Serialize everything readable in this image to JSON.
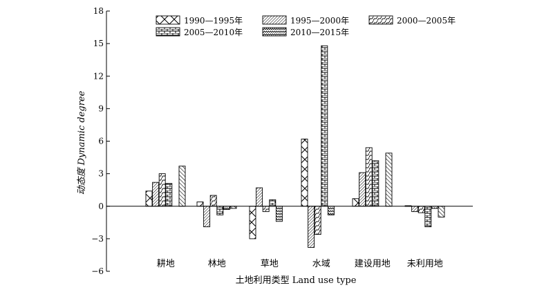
{
  "chart_data": {
    "type": "bar",
    "xlabel": "土地利用类型 Land use type",
    "ylabel": "动态度 Dynamic degree",
    "ylim": [
      -6,
      18
    ],
    "yticks": [
      -6,
      -3,
      0,
      3,
      6,
      9,
      12,
      15,
      18
    ],
    "ytick_labels": [
      "−6",
      "−3",
      "0",
      "3",
      "6",
      "9",
      "12",
      "15",
      "18"
    ],
    "grid": false,
    "legend_position": "top",
    "categories": [
      "耕地",
      "林地",
      "草地",
      "水域",
      "建设用地",
      "未利用地"
    ],
    "series": [
      {
        "name": "1990—1995年",
        "pattern": "cross",
        "values": [
          1.4,
          0.4,
          -3.0,
          6.2,
          0.7,
          0.05
        ]
      },
      {
        "name": "1995—2000年",
        "pattern": "diag-dense",
        "values": [
          2.2,
          -1.9,
          1.7,
          -3.8,
          3.1,
          -0.5
        ]
      },
      {
        "name": "2000—2005年",
        "pattern": "wave",
        "values": [
          3.0,
          1.0,
          -0.5,
          -2.6,
          5.4,
          -0.6
        ]
      },
      {
        "name": "2005—2010年",
        "pattern": "brick",
        "values": [
          2.1,
          -0.8,
          0.6,
          14.8,
          4.2,
          -1.9
        ]
      },
      {
        "name": "2010—2015年",
        "pattern": "zigzag",
        "values": [
          0.0,
          -0.3,
          -1.4,
          -0.8,
          0.0,
          -0.2
        ]
      },
      {
        "name": "",
        "pattern": "diag-sparse",
        "values": [
          3.7,
          -0.2,
          0.0,
          0.0,
          4.9,
          -1.0
        ]
      }
    ]
  }
}
